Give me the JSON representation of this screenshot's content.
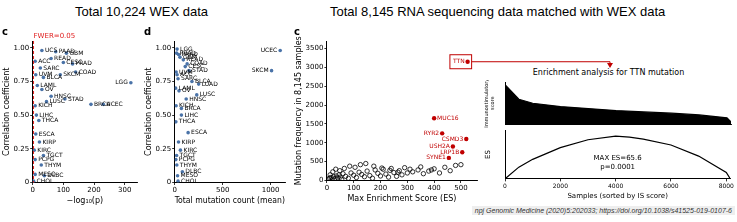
{
  "headings": [
    "Total 10,224 WEX data",
    "Total 8,145 RNA sequencing data matched with WEX data"
  ],
  "caption": "npj Genomic Medicine (2020)5:202033; https://doi.org/10.1038/s41525-019-0107-6",
  "chart_data": [
    {
      "type": "scatter",
      "panel_label": "c",
      "x_label": "−log₁₀(p)",
      "y_label": "Correlation coefficient",
      "xlim": [
        0,
        340
      ],
      "xticks": [
        0,
        100,
        200,
        300
      ],
      "ylim": [
        0,
        1.05
      ],
      "yticks": [
        0,
        0.25,
        {
          "value": 0.5,
          "label": "0.50"
        },
        0.75,
        {
          "value": 1,
          "label": "1.00"
        }
      ],
      "grid": false,
      "color": "#4a73a8",
      "marker": "circle",
      "point_labels": [
        "ACC",
        "UCS",
        "PAAD",
        "GBM",
        "READ",
        "CESC",
        "PRAD",
        "SARC",
        "UVM",
        "BLCA",
        "SKCM",
        "COAD",
        "LGG",
        "LAML",
        "OV",
        "HNSC",
        "LUSC",
        "STAD",
        "BRCA",
        "UCEC",
        "KICH",
        "LIHC",
        "THCA",
        "ESCA",
        "KIRP",
        "KIRC",
        "TGCT",
        "PCPG",
        "THYM",
        "MESO",
        "DLBC",
        "CHOL"
      ],
      "x": [
        8,
        30,
        75,
        110,
        60,
        100,
        130,
        25,
        10,
        35,
        90,
        140,
        320,
        15,
        30,
        60,
        45,
        105,
        190,
        230,
        8,
        12,
        20,
        10,
        22,
        5,
        35,
        8,
        28,
        8,
        38,
        3
      ],
      "values": [
        0.9,
        0.98,
        0.97,
        0.96,
        0.92,
        0.89,
        0.88,
        0.85,
        0.8,
        0.78,
        0.8,
        0.82,
        0.74,
        0.72,
        0.69,
        0.64,
        0.6,
        0.62,
        0.58,
        0.58,
        0.57,
        0.5,
        0.46,
        0.36,
        0.3,
        0.24,
        0.2,
        0.17,
        0.13,
        0.06,
        0.05,
        0.01
      ],
      "annotations": [
        {
          "x": 2.8,
          "text": "FWER=0.05",
          "color": "#e02020",
          "line_style": "dashed"
        }
      ]
    },
    {
      "type": "scatter",
      "panel_label": "d",
      "x_label": "Total mutation count (mean)",
      "y_label": "Correlation coefficient",
      "xlim": [
        0,
        1150
      ],
      "xticks": [
        0,
        500,
        1000
      ],
      "ylim": [
        0,
        1.05
      ],
      "yticks": [
        0,
        0.25,
        {
          "value": 0.5,
          "label": "0.50"
        },
        0.75,
        {
          "value": 1,
          "label": "1.00"
        }
      ],
      "grid": false,
      "color": "#4a73a8",
      "marker": "circle",
      "point_labels": [
        "LGG",
        "PRAD",
        "PAAD",
        "GBM",
        "READ",
        "COAD",
        "CESC",
        "STAD",
        "UVM",
        "ACC",
        "SARC",
        "BLCA",
        "LUAD",
        "LAML",
        "OV",
        "LUSC",
        "HNSC",
        "KICH",
        "BRCA",
        "LIHC",
        "THCA",
        "ESCA",
        "KIRP",
        "KIRC",
        "TGCT",
        "PCPG",
        "THYM",
        "DLBC",
        "MESO",
        "CHOL",
        "SKCM",
        "UCEC"
      ],
      "x": [
        25,
        20,
        40,
        55,
        90,
        130,
        110,
        150,
        15,
        25,
        35,
        180,
        250,
        10,
        45,
        230,
        120,
        15,
        70,
        70,
        12,
        140,
        40,
        60,
        20,
        12,
        22,
        80,
        30,
        35,
        1010,
        1100
      ],
      "values": [
        0.99,
        0.96,
        0.95,
        0.93,
        0.91,
        0.88,
        0.86,
        0.83,
        0.82,
        0.8,
        0.77,
        0.75,
        0.73,
        0.7,
        0.68,
        0.65,
        0.62,
        0.57,
        0.55,
        0.5,
        0.45,
        0.37,
        0.3,
        0.24,
        0.2,
        0.17,
        0.13,
        0.08,
        0.05,
        0.01,
        0.83,
        0.98
      ]
    },
    {
      "type": "scatter",
      "panel_label": "c",
      "x_label": "Max Enrichment Score (ES)",
      "y_label": "Mutation frequency in 8,145 samples",
      "xlim": [
        0,
        560
      ],
      "xticks": [
        0,
        100,
        200,
        300,
        400,
        500
      ],
      "ylim": [
        0,
        3700
      ],
      "yticks": [
        0,
        500,
        1000,
        1500,
        2000,
        2500,
        3000,
        3500
      ],
      "grid": false,
      "boxed_label": "TTN",
      "series": [
        {
          "color": "#000000",
          "marker": "open_circle",
          "x": [
            5,
            10,
            15,
            20,
            25,
            30,
            35,
            40,
            45,
            50,
            55,
            60,
            70,
            80,
            90,
            100,
            110,
            120,
            130,
            140,
            150,
            160,
            170,
            180,
            190,
            200,
            210,
            220,
            230,
            240,
            250,
            260,
            270,
            280,
            290,
            300,
            320,
            340,
            360,
            380,
            400,
            420,
            440,
            460,
            480,
            500,
            12,
            22,
            33,
            48,
            65,
            85,
            105,
            125,
            145,
            175,
            205,
            235,
            265,
            310,
            350,
            390
          ],
          "values": [
            40,
            60,
            80,
            20,
            100,
            50,
            120,
            70,
            150,
            90,
            30,
            180,
            110,
            60,
            200,
            140,
            80,
            220,
            160,
            100,
            250,
            130,
            60,
            280,
            190,
            120,
            300,
            170,
            90,
            320,
            210,
            110,
            260,
            150,
            340,
            200,
            230,
            280,
            180,
            250,
            310,
            200,
            350,
            260,
            400,
            420,
            150,
            230,
            300,
            260,
            320,
            380,
            350,
            420,
            450,
            380,
            330,
            270,
            220,
            300,
            360,
            280
          ]
        },
        {
          "color": "#c00000",
          "marker": "circle",
          "point_labels": [
            "TTN",
            "MUC16",
            "RYR2",
            "CSMD3",
            "USH2A",
            "LRP1B",
            "SYNE1"
          ],
          "x": [
            525,
            400,
            430,
            520,
            470,
            505,
            455
          ],
          "values": [
            3150,
            1650,
            1250,
            1100,
            900,
            750,
            600
          ]
        }
      ]
    },
    {
      "type": "area",
      "title": "Enrichment analysis for TTN mutation",
      "y_label": "Immunostimulatory score",
      "xlim": [
        0,
        8145
      ],
      "ylim": [
        0,
        3.2
      ],
      "tick_labels": false,
      "grid": false,
      "color": "#000000",
      "x": [
        0,
        500,
        1000,
        2000,
        3000,
        4000,
        5000,
        6000,
        7000,
        8000,
        8145
      ],
      "values": [
        3.0,
        1.9,
        1.6,
        1.35,
        1.2,
        1.05,
        0.95,
        0.85,
        0.72,
        0.5,
        0.2
      ]
    },
    {
      "type": "line",
      "y_label": "ES",
      "x_label": "Samples (sorted by IS score)",
      "xlim": [
        0,
        8145
      ],
      "xticks": [
        0,
        2000,
        4000,
        6000,
        8000
      ],
      "ylim": [
        0,
        75
      ],
      "tick_labels": "x",
      "grid": false,
      "color": "#000000",
      "x": [
        0,
        500,
        1000,
        2000,
        3000,
        4000,
        4500,
        5000,
        6000,
        7000,
        8000,
        8145
      ],
      "values": [
        0,
        18,
        30,
        48,
        60,
        65.6,
        64,
        61,
        52,
        35,
        10,
        0
      ],
      "annotation_text": [
        "MAX ES=65.6",
        "p=0.0001"
      ]
    }
  ]
}
